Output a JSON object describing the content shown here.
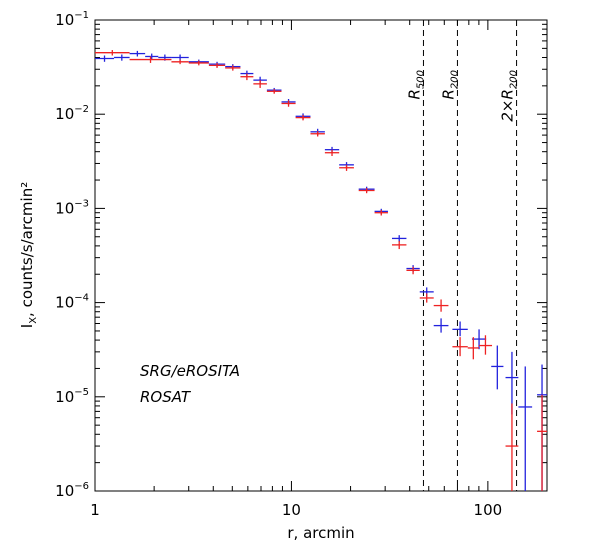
{
  "chart_data": {
    "type": "scatter",
    "title": "",
    "xlabel": "r, arcmin",
    "ylabel": "I",
    "ylabel_sub": "X",
    "ylabel_rest": ", counts/s/arcmin²",
    "xscale": "log",
    "yscale": "log",
    "xlim": [
      1,
      200
    ],
    "ylim": [
      1e-06,
      0.1
    ],
    "grid": false,
    "legend_placement": "center-left",
    "x_ticks": [
      {
        "value": 1,
        "label": "1"
      },
      {
        "value": 10,
        "label": "10"
      },
      {
        "value": 100,
        "label": "100"
      }
    ],
    "y_ticks": [
      {
        "value": 1e-06,
        "base": "10",
        "exp": "−6"
      },
      {
        "value": 1e-05,
        "base": "10",
        "exp": "−5"
      },
      {
        "value": 0.0001,
        "base": "10",
        "exp": "−4"
      },
      {
        "value": 0.001,
        "base": "10",
        "exp": "−3"
      },
      {
        "value": 0.01,
        "base": "10",
        "exp": "−2"
      },
      {
        "value": 0.1,
        "base": "10",
        "exp": "−1"
      }
    ],
    "vlines": [
      {
        "x": 47,
        "label": "R",
        "sub": "500"
      },
      {
        "x": 70,
        "label": "R",
        "sub": "200"
      },
      {
        "x": 140,
        "label": "2×R",
        "sub": "200"
      }
    ],
    "series": [
      {
        "name": "SRG/eROSITA",
        "color": "#2222dd",
        "points": [
          {
            "x0": 1.0,
            "x1": 1.25,
            "y": 0.039,
            "ylo": 0.036,
            "yhi": 0.042
          },
          {
            "x0": 1.25,
            "x1": 1.5,
            "y": 0.04,
            "ylo": 0.037,
            "yhi": 0.043
          },
          {
            "x0": 1.5,
            "x1": 1.8,
            "y": 0.044,
            "ylo": 0.041,
            "yhi": 0.047
          },
          {
            "x0": 1.8,
            "x1": 2.1,
            "y": 0.041,
            "ylo": 0.038,
            "yhi": 0.044
          },
          {
            "x0": 2.1,
            "x1": 2.45,
            "y": 0.04,
            "ylo": 0.037,
            "yhi": 0.043
          },
          {
            "x0": 2.45,
            "x1": 3.0,
            "y": 0.04,
            "ylo": 0.037,
            "yhi": 0.043
          },
          {
            "x0": 3.0,
            "x1": 3.8,
            "y": 0.036,
            "ylo": 0.034,
            "yhi": 0.038
          },
          {
            "x0": 3.8,
            "x1": 4.6,
            "y": 0.034,
            "ylo": 0.032,
            "yhi": 0.036
          },
          {
            "x0": 4.6,
            "x1": 5.5,
            "y": 0.032,
            "ylo": 0.03,
            "yhi": 0.034
          },
          {
            "x0": 5.5,
            "x1": 6.4,
            "y": 0.027,
            "ylo": 0.025,
            "yhi": 0.029
          },
          {
            "x0": 6.4,
            "x1": 7.5,
            "y": 0.023,
            "ylo": 0.021,
            "yhi": 0.025
          },
          {
            "x0": 7.5,
            "x1": 8.9,
            "y": 0.018,
            "ylo": 0.017,
            "yhi": 0.019
          },
          {
            "x0": 8.9,
            "x1": 10.5,
            "y": 0.0135,
            "ylo": 0.0125,
            "yhi": 0.0145
          },
          {
            "x0": 10.5,
            "x1": 12.5,
            "y": 0.0095,
            "ylo": 0.0088,
            "yhi": 0.0102
          },
          {
            "x0": 12.5,
            "x1": 14.8,
            "y": 0.0065,
            "ylo": 0.006,
            "yhi": 0.007
          },
          {
            "x0": 14.8,
            "x1": 17.5,
            "y": 0.0042,
            "ylo": 0.0039,
            "yhi": 0.0045
          },
          {
            "x0": 17.5,
            "x1": 20.8,
            "y": 0.0029,
            "ylo": 0.0027,
            "yhi": 0.0031
          },
          {
            "x0": 22.0,
            "x1": 26.5,
            "y": 0.0016,
            "ylo": 0.0015,
            "yhi": 0.0017
          },
          {
            "x0": 26.5,
            "x1": 31.0,
            "y": 0.00093,
            "ylo": 0.00087,
            "yhi": 0.00099
          },
          {
            "x0": 32.5,
            "x1": 38.5,
            "y": 0.00048,
            "ylo": 0.00044,
            "yhi": 0.00052
          },
          {
            "x0": 38.5,
            "x1": 45.0,
            "y": 0.00023,
            "ylo": 0.00021,
            "yhi": 0.00025
          },
          {
            "x0": 45.0,
            "x1": 53.0,
            "y": 0.00013,
            "ylo": 0.000115,
            "yhi": 0.000145
          },
          {
            "x0": 53.0,
            "x1": 63.0,
            "y": 5.7e-05,
            "ylo": 4.8e-05,
            "yhi": 6.8e-05
          },
          {
            "x0": 66.0,
            "x1": 79.0,
            "y": 5.2e-05,
            "ylo": 4.4e-05,
            "yhi": 6.3e-05
          },
          {
            "x0": 83.0,
            "x1": 98.0,
            "y": 4.1e-05,
            "ylo": 3.2e-05,
            "yhi": 5.2e-05
          },
          {
            "x0": 104.0,
            "x1": 120.0,
            "y": 2.1e-05,
            "ylo": 1.2e-05,
            "yhi": 3.5e-05
          },
          {
            "x0": 123.0,
            "x1": 143.0,
            "y": 1.6e-05,
            "ylo": 6.5e-06,
            "yhi": 3e-05
          },
          {
            "x0": 143.0,
            "x1": 168.0,
            "y": 7.8e-06,
            "ylo": 1e-06,
            "yhi": 2.1e-05
          },
          {
            "x0": 178.0,
            "x1": 200.0,
            "y": 1.05e-05,
            "ylo": 1e-06,
            "yhi": 2.2e-05
          }
        ]
      },
      {
        "name": "ROSAT",
        "color": "#ee2222",
        "points": [
          {
            "x0": 1.0,
            "x1": 1.5,
            "y": 0.045,
            "ylo": 0.042,
            "yhi": 0.048
          },
          {
            "x0": 1.5,
            "x1": 2.45,
            "y": 0.038,
            "ylo": 0.035,
            "yhi": 0.041
          },
          {
            "x0": 2.45,
            "x1": 3.0,
            "y": 0.036,
            "ylo": 0.034,
            "yhi": 0.038
          },
          {
            "x0": 3.0,
            "x1": 3.8,
            "y": 0.035,
            "ylo": 0.033,
            "yhi": 0.037
          },
          {
            "x0": 3.8,
            "x1": 4.6,
            "y": 0.033,
            "ylo": 0.031,
            "yhi": 0.035
          },
          {
            "x0": 4.6,
            "x1": 5.5,
            "y": 0.031,
            "ylo": 0.029,
            "yhi": 0.033
          },
          {
            "x0": 5.5,
            "x1": 6.4,
            "y": 0.025,
            "ylo": 0.023,
            "yhi": 0.027
          },
          {
            "x0": 6.4,
            "x1": 7.5,
            "y": 0.021,
            "ylo": 0.019,
            "yhi": 0.023
          },
          {
            "x0": 7.5,
            "x1": 8.9,
            "y": 0.0175,
            "ylo": 0.0165,
            "yhi": 0.0185
          },
          {
            "x0": 8.9,
            "x1": 10.5,
            "y": 0.013,
            "ylo": 0.012,
            "yhi": 0.014
          },
          {
            "x0": 10.5,
            "x1": 12.5,
            "y": 0.0092,
            "ylo": 0.0086,
            "yhi": 0.0098
          },
          {
            "x0": 12.5,
            "x1": 14.8,
            "y": 0.0062,
            "ylo": 0.0058,
            "yhi": 0.0066
          },
          {
            "x0": 14.8,
            "x1": 17.5,
            "y": 0.0039,
            "ylo": 0.0036,
            "yhi": 0.0042
          },
          {
            "x0": 17.5,
            "x1": 20.8,
            "y": 0.0027,
            "ylo": 0.0025,
            "yhi": 0.0029
          },
          {
            "x0": 22.0,
            "x1": 26.5,
            "y": 0.00155,
            "ylo": 0.00145,
            "yhi": 0.00165
          },
          {
            "x0": 26.5,
            "x1": 31.0,
            "y": 0.0009,
            "ylo": 0.00084,
            "yhi": 0.00096
          },
          {
            "x0": 32.5,
            "x1": 38.5,
            "y": 0.00041,
            "ylo": 0.00037,
            "yhi": 0.00045
          },
          {
            "x0": 38.5,
            "x1": 45.0,
            "y": 0.00022,
            "ylo": 0.0002,
            "yhi": 0.00024
          },
          {
            "x0": 45.0,
            "x1": 53.0,
            "y": 0.000112,
            "ylo": 0.0001,
            "yhi": 0.000125
          },
          {
            "x0": 53.0,
            "x1": 63.0,
            "y": 9.3e-05,
            "ylo": 8e-05,
            "yhi": 0.000108
          },
          {
            "x0": 66.0,
            "x1": 79.0,
            "y": 3.4e-05,
            "ylo": 2.7e-05,
            "yhi": 4.3e-05
          },
          {
            "x0": 79.0,
            "x1": 90.0,
            "y": 3.3e-05,
            "ylo": 2.5e-05,
            "yhi": 4.3e-05
          },
          {
            "x0": 90.0,
            "x1": 105.0,
            "y": 3.5e-05,
            "ylo": 2.8e-05,
            "yhi": 4.5e-05
          },
          {
            "x0": 123.0,
            "x1": 143.0,
            "y": 3e-06,
            "ylo": 1e-06,
            "yhi": 8.5e-06
          },
          {
            "x0": 178.0,
            "x1": 200.0,
            "y": 4.3e-06,
            "ylo": 1e-06,
            "yhi": 1.05e-05
          }
        ]
      }
    ]
  }
}
